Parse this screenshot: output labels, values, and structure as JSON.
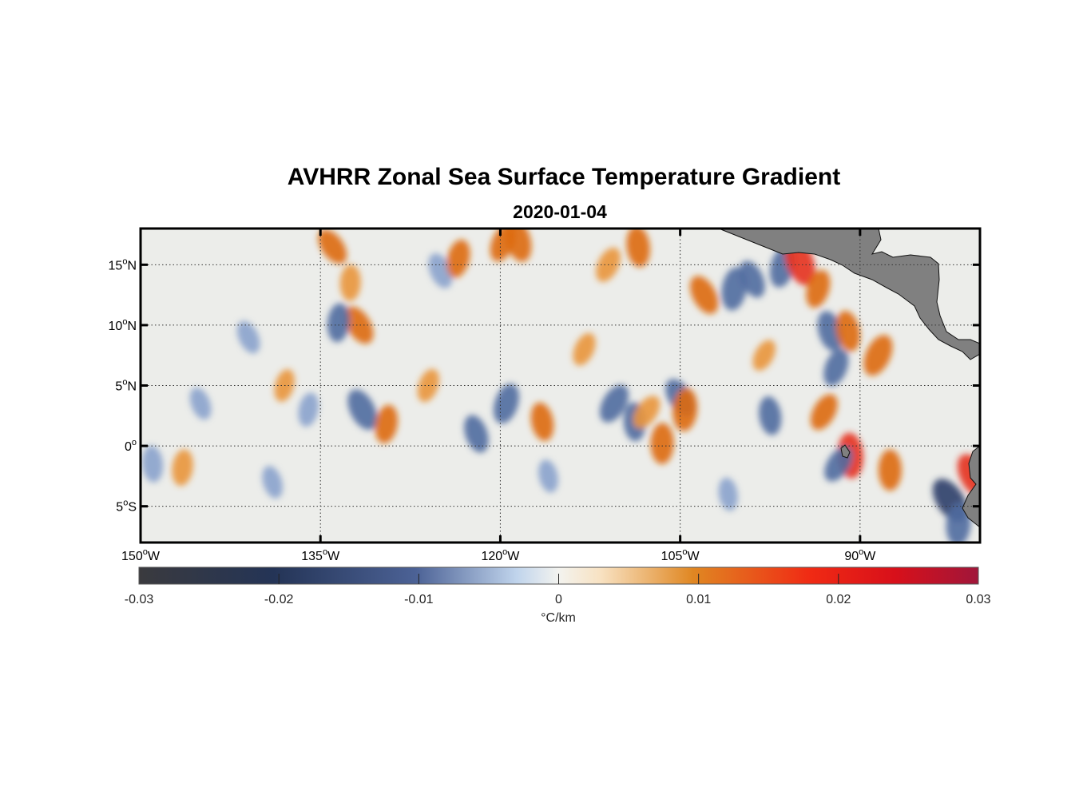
{
  "title": "AVHRR Zonal Sea Surface Temperature Gradient",
  "subtitle": "2020-01-04",
  "map": {
    "lon_range": [
      -150,
      -80
    ],
    "lat_range": [
      -8,
      18
    ],
    "x_ticks": [
      {
        "value": -150,
        "deg": "150",
        "hemi": "W"
      },
      {
        "value": -135,
        "deg": "135",
        "hemi": "W"
      },
      {
        "value": -120,
        "deg": "120",
        "hemi": "W"
      },
      {
        "value": -105,
        "deg": "105",
        "hemi": "W"
      },
      {
        "value": -90,
        "deg": "90",
        "hemi": "W"
      }
    ],
    "y_ticks": [
      {
        "value": 15,
        "deg": "15",
        "hemi": "N"
      },
      {
        "value": 10,
        "deg": "10",
        "hemi": "N"
      },
      {
        "value": 5,
        "deg": "5",
        "hemi": "N"
      },
      {
        "value": 0,
        "deg": "0",
        "hemi": ""
      },
      {
        "value": -5,
        "deg": "5",
        "hemi": "S"
      }
    ],
    "land_color": "#808080",
    "ocean_base_color": "#ecedea"
  },
  "colorbar": {
    "min": -0.03,
    "max": 0.03,
    "tick_labels": [
      "-0.03",
      "-0.02",
      "-0.01",
      "0",
      "0.01",
      "0.02",
      "0.03"
    ],
    "units": "°C/km",
    "stops": [
      {
        "v": 0.0,
        "c": "#3a3a3e"
      },
      {
        "v": 0.16,
        "c": "#243456"
      },
      {
        "v": 0.33,
        "c": "#4c6296"
      },
      {
        "v": 0.45,
        "c": "#c0d4ec"
      },
      {
        "v": 0.5,
        "c": "#f3f3ef"
      },
      {
        "v": 0.55,
        "c": "#f8e2c2"
      },
      {
        "v": 0.66,
        "c": "#e08722"
      },
      {
        "v": 0.8,
        "c": "#f02a14"
      },
      {
        "v": 0.9,
        "c": "#d8101a"
      },
      {
        "v": 1.0,
        "c": "#a0163a"
      }
    ]
  },
  "features": [
    {
      "kind": "warm",
      "lon": -134.0,
      "lat": 16.5,
      "strength": 0.6
    },
    {
      "kind": "warm",
      "lon": -132.5,
      "lat": 13.5,
      "strength": 0.5
    },
    {
      "kind": "warm",
      "lon": -131.8,
      "lat": 10.0,
      "strength": 0.7
    },
    {
      "kind": "cold",
      "lon": -133.5,
      "lat": 10.2,
      "strength": 0.6
    },
    {
      "kind": "cold",
      "lon": -131.5,
      "lat": 3.0,
      "strength": 0.8
    },
    {
      "kind": "warm",
      "lon": -129.5,
      "lat": 1.8,
      "strength": 0.6
    },
    {
      "kind": "cold",
      "lon": -125.0,
      "lat": 14.5,
      "strength": 0.5
    },
    {
      "kind": "warm",
      "lon": -123.5,
      "lat": 15.5,
      "strength": 0.6
    },
    {
      "kind": "cold",
      "lon": -122.0,
      "lat": 1.0,
      "strength": 0.6
    },
    {
      "kind": "cold",
      "lon": -119.5,
      "lat": 3.5,
      "strength": 0.7
    },
    {
      "kind": "warm",
      "lon": -118.5,
      "lat": 17.0,
      "strength": 0.8
    },
    {
      "kind": "warm",
      "lon": -119.8,
      "lat": 16.8,
      "strength": 0.6
    },
    {
      "kind": "warm",
      "lon": -116.5,
      "lat": 2.0,
      "strength": 0.6
    },
    {
      "kind": "warm",
      "lon": -111.0,
      "lat": 15.0,
      "strength": 0.5
    },
    {
      "kind": "warm",
      "lon": -108.5,
      "lat": 16.5,
      "strength": 0.7
    },
    {
      "kind": "cold",
      "lon": -110.5,
      "lat": 3.5,
      "strength": 0.7
    },
    {
      "kind": "cold",
      "lon": -108.8,
      "lat": 2.0,
      "strength": 0.6
    },
    {
      "kind": "warm",
      "lon": -107.8,
      "lat": 2.8,
      "strength": 0.5
    },
    {
      "kind": "warm",
      "lon": -106.5,
      "lat": 0.2,
      "strength": 0.7
    },
    {
      "kind": "cold",
      "lon": -105.0,
      "lat": 4.0,
      "strength": 0.7
    },
    {
      "kind": "warm",
      "lon": -104.6,
      "lat": 3.0,
      "strength": 0.8
    },
    {
      "kind": "warm",
      "lon": -103.0,
      "lat": 12.5,
      "strength": 0.7
    },
    {
      "kind": "cold",
      "lon": -100.5,
      "lat": 13.0,
      "strength": 0.8
    },
    {
      "kind": "cold",
      "lon": -99.0,
      "lat": 13.8,
      "strength": 0.6
    },
    {
      "kind": "cold",
      "lon": -96.5,
      "lat": 14.8,
      "strength": 0.7
    },
    {
      "kind": "warm",
      "lon": -95.0,
      "lat": 15.2,
      "strength": 1.0
    },
    {
      "kind": "warm",
      "lon": -93.5,
      "lat": 13.0,
      "strength": 0.6
    },
    {
      "kind": "cold",
      "lon": -92.5,
      "lat": 9.5,
      "strength": 0.7
    },
    {
      "kind": "cold",
      "lon": -92.0,
      "lat": 6.5,
      "strength": 0.6
    },
    {
      "kind": "warm",
      "lon": -91.0,
      "lat": 9.5,
      "strength": 0.7
    },
    {
      "kind": "warm",
      "lon": -88.5,
      "lat": 7.5,
      "strength": 0.8
    },
    {
      "kind": "cold",
      "lon": -97.5,
      "lat": 2.5,
      "strength": 0.6
    },
    {
      "kind": "warm",
      "lon": -93.0,
      "lat": 2.8,
      "strength": 0.6
    },
    {
      "kind": "warm",
      "lon": -90.8,
      "lat": -0.8,
      "strength": 0.9
    },
    {
      "kind": "cold",
      "lon": -91.8,
      "lat": -1.5,
      "strength": 0.6
    },
    {
      "kind": "warm",
      "lon": -87.5,
      "lat": -2.0,
      "strength": 0.7
    },
    {
      "kind": "cold",
      "lon": -82.5,
      "lat": -4.5,
      "strength": 1.0
    },
    {
      "kind": "cold",
      "lon": -81.8,
      "lat": -6.5,
      "strength": 0.8
    },
    {
      "kind": "warm",
      "lon": -80.5,
      "lat": -2.5,
      "strength": 1.0
    },
    {
      "kind": "warm",
      "lon": -146.5,
      "lat": -1.8,
      "strength": 0.5
    },
    {
      "kind": "cold",
      "lon": -141.0,
      "lat": 9.0,
      "strength": 0.4
    },
    {
      "kind": "cold",
      "lon": -136.0,
      "lat": 3.0,
      "strength": 0.4
    },
    {
      "kind": "cold",
      "lon": -145.0,
      "lat": 3.5,
      "strength": 0.35
    },
    {
      "kind": "warm",
      "lon": -138.0,
      "lat": 5.0,
      "strength": 0.35
    },
    {
      "kind": "cold",
      "lon": -139.0,
      "lat": -3.0,
      "strength": 0.35
    },
    {
      "kind": "warm",
      "lon": -126.0,
      "lat": 5.0,
      "strength": 0.4
    },
    {
      "kind": "cold",
      "lon": -116.0,
      "lat": -2.5,
      "strength": 0.35
    },
    {
      "kind": "warm",
      "lon": -113.0,
      "lat": 8.0,
      "strength": 0.4
    },
    {
      "kind": "cold",
      "lon": -101.0,
      "lat": -4.0,
      "strength": 0.35
    },
    {
      "kind": "warm",
      "lon": -98.0,
      "lat": 7.5,
      "strength": 0.35
    },
    {
      "kind": "cold",
      "lon": -149.0,
      "lat": -1.5,
      "strength": 0.5
    }
  ]
}
